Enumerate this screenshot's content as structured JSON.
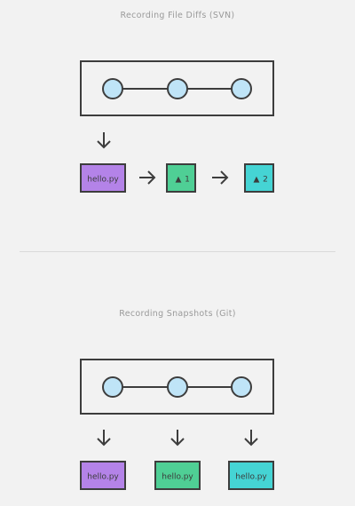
{
  "svn": {
    "title": "Recording File Diffs (SVN)",
    "timeline_nodes": 3,
    "file_label": "hello.py",
    "diffs": [
      {
        "symbol": "▲",
        "label": "1",
        "color": "#4fcf95"
      },
      {
        "symbol": "▲",
        "label": "2",
        "color": "#45d4d4"
      }
    ],
    "file_color": "#b483e8"
  },
  "git": {
    "title": "Recording Snapshots (Git)",
    "timeline_nodes": 3,
    "snapshots": [
      {
        "label": "hello.py",
        "color": "#b483e8"
      },
      {
        "label": "hello.py",
        "color": "#4fcf95"
      },
      {
        "label": "hello.py",
        "color": "#45d4d4"
      }
    ]
  },
  "colors": {
    "node_fill": "#bfe4f7",
    "stroke": "#3d3d3d",
    "background": "#f2f2f2"
  }
}
